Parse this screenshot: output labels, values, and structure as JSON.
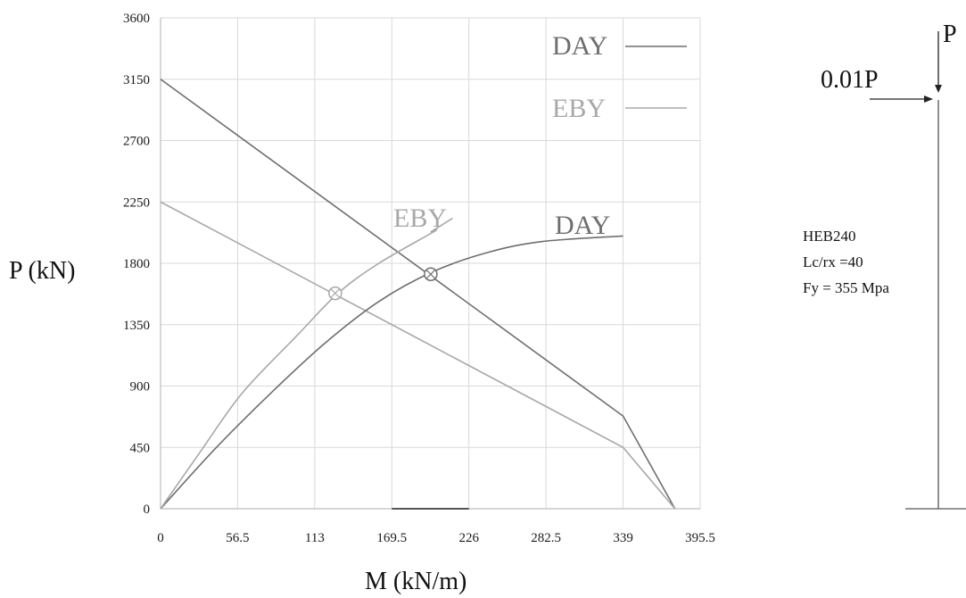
{
  "chart_data": {
    "type": "line",
    "xlabel": "M (kN/m)",
    "ylabel": "P (kN)",
    "xlim": [
      0,
      395.5
    ],
    "ylim": [
      0,
      3600
    ],
    "x_ticks": [
      "0",
      "56.5",
      "113",
      "169.5",
      "226",
      "282.5",
      "339",
      "395.5"
    ],
    "y_ticks": [
      "0",
      "450",
      "900",
      "1350",
      "1800",
      "2250",
      "2700",
      "3150",
      "3600"
    ],
    "grid": true,
    "legend_position": "top-right",
    "colors": {
      "DAY": "#6e6e6e",
      "EBY": "#a8a8a8"
    },
    "series": [
      {
        "name": "DAY",
        "kind": "interaction",
        "points": [
          [
            0,
            3150
          ],
          [
            339,
            680
          ],
          [
            377,
            0
          ]
        ]
      },
      {
        "name": "EBY",
        "kind": "interaction",
        "points": [
          [
            0,
            2250
          ],
          [
            339,
            450
          ],
          [
            377,
            0
          ]
        ]
      },
      {
        "name": "DAY",
        "kind": "demand",
        "points": [
          [
            0,
            0
          ],
          [
            40,
            440
          ],
          [
            80,
            840
          ],
          [
            120,
            1210
          ],
          [
            160,
            1520
          ],
          [
            200,
            1740
          ],
          [
            240,
            1880
          ],
          [
            280,
            1960
          ],
          [
            339,
            2000
          ]
        ]
      },
      {
        "name": "EBY",
        "kind": "demand",
        "points": [
          [
            0,
            0
          ],
          [
            30,
            430
          ],
          [
            60,
            850
          ],
          [
            100,
            1270
          ],
          [
            130,
            1580
          ],
          [
            160,
            1800
          ],
          [
            200,
            2030
          ],
          [
            198,
            2030
          ]
        ]
      }
    ],
    "intersections": [
      {
        "series": "DAY",
        "x": 198,
        "y": 1720
      },
      {
        "series": "EBY",
        "x": 128,
        "y": 1580
      }
    ],
    "annotations": [
      "DAY",
      "EBY"
    ]
  },
  "legend": {
    "day_label": "DAY",
    "eby_label": "EBY"
  },
  "annotations": {
    "day_curve_label": "DAY",
    "eby_curve_label": "EBY"
  },
  "load_diagram": {
    "vertical_load": "P",
    "lateral_load": "0.01P"
  },
  "section_info": {
    "section": "HEB240",
    "slenderness": "Lc/rx =40",
    "yield": "Fy = 355 Mpa"
  }
}
